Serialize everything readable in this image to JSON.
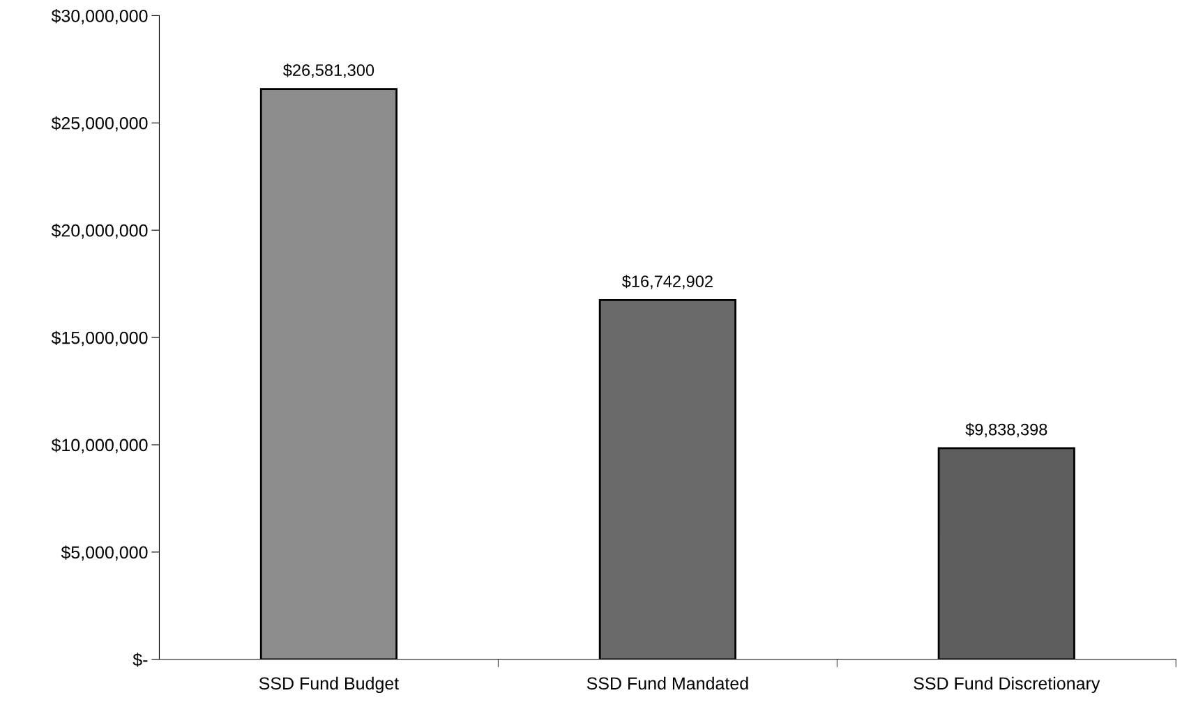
{
  "chart_data": {
    "type": "bar",
    "categories": [
      "SSD Fund Budget",
      "SSD Fund Mandated",
      "SSD Fund Discretionary"
    ],
    "values": [
      26581300,
      16742902,
      9838398
    ],
    "colors": [
      "#8c8c8c",
      "#6a6a6a",
      "#5e5e5e"
    ],
    "value_labels": [
      "$26,581,300",
      "$16,742,902",
      "$9,838,398"
    ],
    "ylim": [
      0,
      30000000
    ],
    "yticks": [
      {
        "value": 0,
        "label": "$-"
      },
      {
        "value": 5000000,
        "label": "$5,000,000"
      },
      {
        "value": 10000000,
        "label": "$10,000,000"
      },
      {
        "value": 15000000,
        "label": "$15,000,000"
      },
      {
        "value": 20000000,
        "label": "$20,000,000"
      },
      {
        "value": 25000000,
        "label": "$25,000,000"
      },
      {
        "value": 30000000,
        "label": "$30,000,000"
      }
    ],
    "grid": false,
    "legend": false
  }
}
